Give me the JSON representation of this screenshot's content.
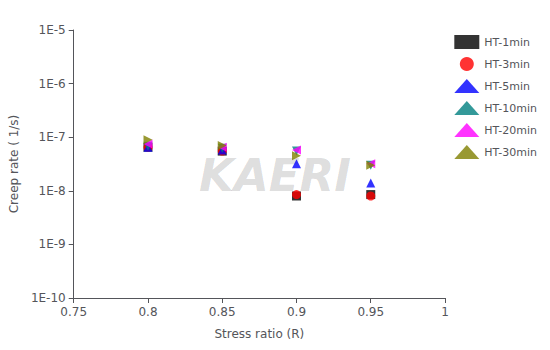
{
  "chart_data": {
    "type": "scatter",
    "title": "",
    "xlabel": "Stress ratio (R)",
    "ylabel": "Creep rate ( 1/s)",
    "annotation": "KAERI",
    "log": "y",
    "grid": false,
    "legend": "upper right",
    "xlim": [
      0.75,
      1.0
    ],
    "xticks": [
      0.75,
      0.8,
      0.85,
      0.9,
      0.95,
      1
    ],
    "ylim": [
      1e-10,
      1e-05
    ],
    "yticks": [
      {
        "value": 1e-10,
        "label": "1E-10"
      },
      {
        "value": 1e-09,
        "label": "1E-9"
      },
      {
        "value": 1e-08,
        "label": "1E-8"
      },
      {
        "value": 1e-07,
        "label": "1E-7"
      },
      {
        "value": 1e-06,
        "label": "1E-6"
      },
      {
        "value": 1e-05,
        "label": "1E-5"
      }
    ],
    "series": [
      {
        "name": "HT-1min",
        "color": "black",
        "marker": "square",
        "x": [
          0.8,
          0.85,
          0.9,
          0.95
        ],
        "values": [
          6.5e-08,
          5.5e-08,
          8e-09,
          8.5e-09
        ]
      },
      {
        "name": "HT-3min",
        "color": "red",
        "marker": "circle",
        "x": [
          0.8,
          0.85,
          0.9,
          0.95
        ],
        "values": [
          6.5e-08,
          5.5e-08,
          8.5e-09,
          8e-09
        ]
      },
      {
        "name": "HT-5min",
        "color": "blue",
        "marker": "triangle-up",
        "x": [
          0.8,
          0.85,
          0.9,
          0.95
        ],
        "values": [
          6.5e-08,
          5.8e-08,
          3.2e-08,
          1.4e-08
        ]
      },
      {
        "name": "HT-10min",
        "color": "#008080",
        "marker": "triangle-down",
        "x": [
          0.8,
          0.85,
          0.9,
          0.95
        ],
        "values": [
          6.8e-08,
          6.2e-08,
          5.5e-08,
          3e-08
        ]
      },
      {
        "name": "HT-20min",
        "color": "magenta",
        "marker": "triangle-left",
        "x": [
          0.8,
          0.85,
          0.9,
          0.95
        ],
        "values": [
          7.5e-08,
          6.5e-08,
          5.8e-08,
          3.2e-08
        ]
      },
      {
        "name": "HT-30min",
        "color": "#808000",
        "marker": "triangle-right",
        "x": [
          0.8,
          0.85,
          0.9,
          0.95
        ],
        "values": [
          9e-08,
          7e-08,
          4.5e-08,
          3e-08
        ]
      }
    ]
  }
}
